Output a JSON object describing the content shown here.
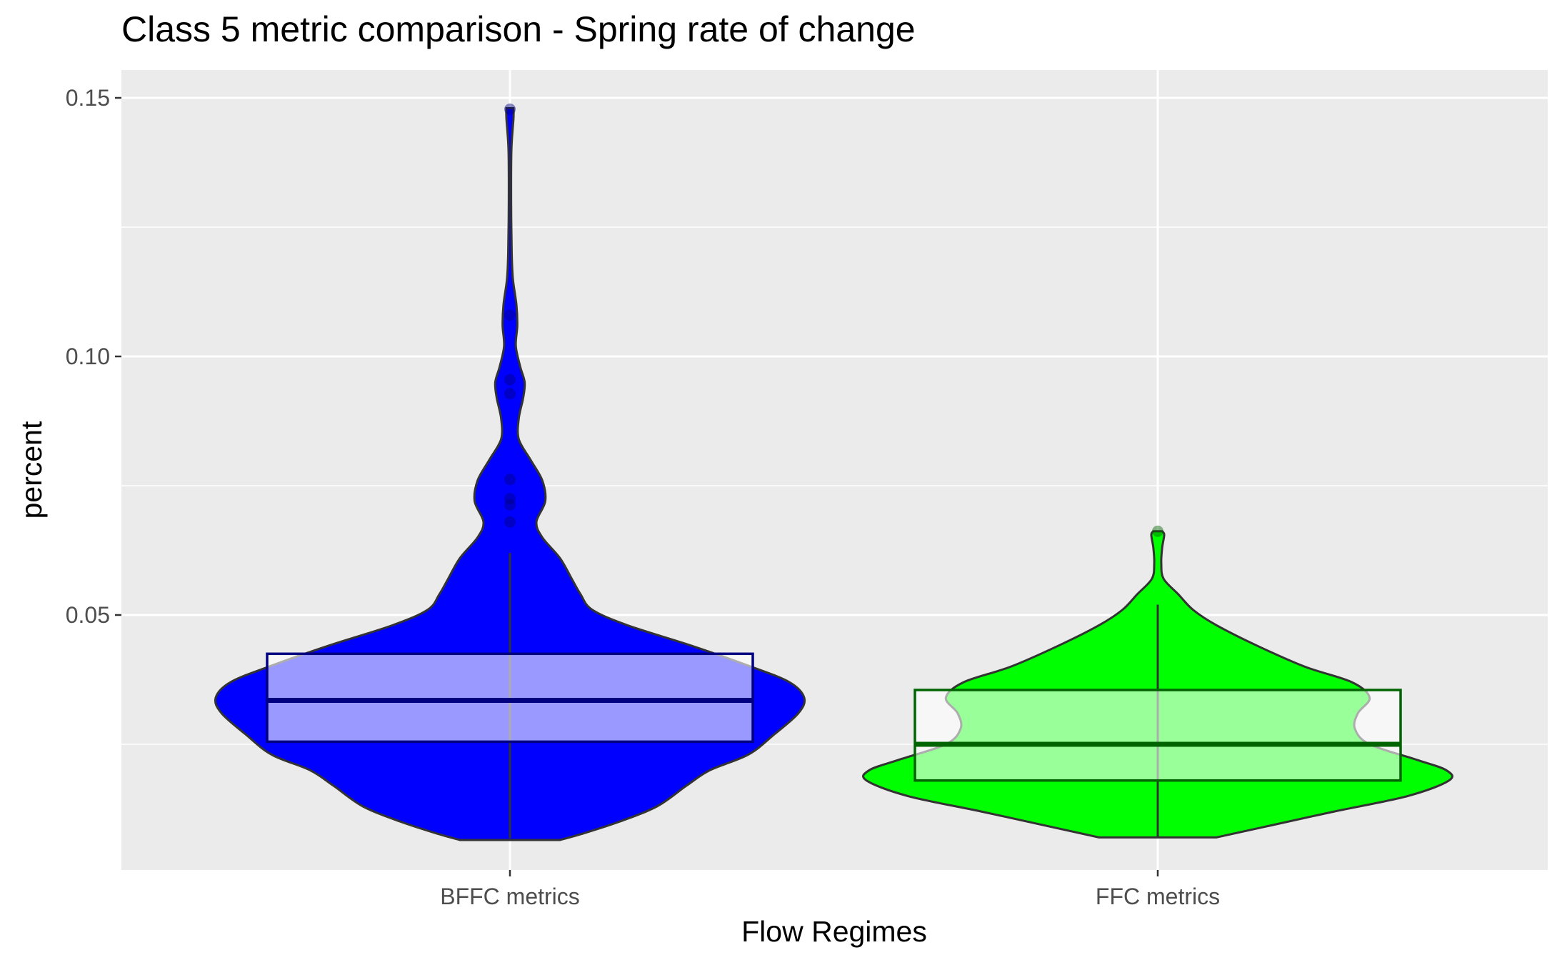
{
  "chart_data": {
    "type": "violin",
    "title": "Class 5 metric comparison - Spring rate of change",
    "xlabel": "Flow Regimes",
    "ylabel": "percent",
    "ylim": [
      0.0,
      0.155
    ],
    "y_ticks": [
      0.05,
      0.1,
      0.15
    ],
    "y_tick_labels": [
      "0.05",
      "0.10",
      "0.15"
    ],
    "grid": true,
    "legend": "none",
    "categories": [
      "BFFC metrics",
      "FFC metrics"
    ],
    "series": [
      {
        "category": "BFFC metrics",
        "fill_color": "#0000ff",
        "box_fill": "#9e9eff",
        "box_line_color": "#000080",
        "box": {
          "q1": 0.0255,
          "median": 0.0335,
          "q3": 0.0425,
          "whisker_low": 0.0068,
          "whisker_high": 0.062
        },
        "outliers": [
          0.068,
          0.0713,
          0.0725,
          0.0762,
          0.0928,
          0.0955,
          0.108,
          0.1478
        ],
        "density": [
          [
            0.0065,
            0.17
          ],
          [
            0.0076,
            0.24
          ],
          [
            0.01,
            0.37
          ],
          [
            0.013,
            0.5
          ],
          [
            0.017,
            0.6
          ],
          [
            0.02,
            0.68
          ],
          [
            0.023,
            0.81
          ],
          [
            0.027,
            0.9
          ],
          [
            0.031,
            0.98
          ],
          [
            0.034,
            1.0
          ],
          [
            0.037,
            0.95
          ],
          [
            0.04,
            0.82
          ],
          [
            0.044,
            0.62
          ],
          [
            0.048,
            0.4
          ],
          [
            0.051,
            0.28
          ],
          [
            0.054,
            0.24
          ],
          [
            0.057,
            0.21
          ],
          [
            0.061,
            0.17
          ],
          [
            0.065,
            0.11
          ],
          [
            0.068,
            0.09
          ],
          [
            0.072,
            0.12
          ],
          [
            0.076,
            0.11
          ],
          [
            0.08,
            0.07
          ],
          [
            0.084,
            0.03
          ],
          [
            0.088,
            0.03
          ],
          [
            0.092,
            0.045
          ],
          [
            0.095,
            0.05
          ],
          [
            0.098,
            0.035
          ],
          [
            0.102,
            0.02
          ],
          [
            0.106,
            0.025
          ],
          [
            0.11,
            0.022
          ],
          [
            0.115,
            0.01
          ],
          [
            0.12,
            0.006
          ],
          [
            0.13,
            0.004
          ],
          [
            0.14,
            0.005
          ],
          [
            0.146,
            0.012
          ],
          [
            0.148,
            0.012
          ]
        ]
      },
      {
        "category": "FFC metrics",
        "fill_color": "#00ff00",
        "box_fill": "#9eff9e",
        "box_line_color": "#006400",
        "box": {
          "q1": 0.018,
          "median": 0.025,
          "q3": 0.0355,
          "whisker_low": 0.007,
          "whisker_high": 0.052
        },
        "outliers": [
          0.0662
        ],
        "density": [
          [
            0.007,
            0.2
          ],
          [
            0.009,
            0.36
          ],
          [
            0.012,
            0.6
          ],
          [
            0.015,
            0.85
          ],
          [
            0.018,
            0.99
          ],
          [
            0.02,
            0.98
          ],
          [
            0.022,
            0.88
          ],
          [
            0.025,
            0.72
          ],
          [
            0.028,
            0.67
          ],
          [
            0.031,
            0.68
          ],
          [
            0.034,
            0.72
          ],
          [
            0.037,
            0.66
          ],
          [
            0.04,
            0.5
          ],
          [
            0.044,
            0.34
          ],
          [
            0.048,
            0.2
          ],
          [
            0.051,
            0.12
          ],
          [
            0.054,
            0.07
          ],
          [
            0.057,
            0.02
          ],
          [
            0.06,
            0.012
          ],
          [
            0.063,
            0.015
          ],
          [
            0.0655,
            0.022
          ],
          [
            0.0662,
            0.015
          ]
        ]
      }
    ]
  }
}
